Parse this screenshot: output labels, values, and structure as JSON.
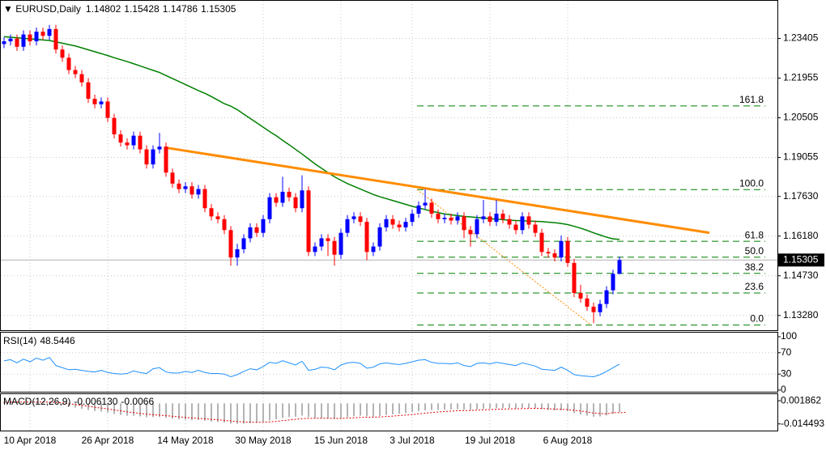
{
  "chart_data": {
    "type": "candlestick",
    "title": "EURUSD,Daily",
    "categories": [
      null,
      null,
      null,
      null,
      "10 Apr 2018",
      null,
      null,
      null,
      null,
      null,
      null,
      null,
      null,
      null,
      null,
      null,
      "26 Apr 2018",
      null,
      null,
      null,
      null,
      null,
      null,
      null,
      null,
      null,
      null,
      null,
      "14 May 2018",
      null,
      null,
      null,
      null,
      null,
      null,
      null,
      null,
      null,
      null,
      null,
      "30 May 2018",
      null,
      null,
      null,
      null,
      null,
      null,
      null,
      null,
      null,
      null,
      null,
      "15 Jun 2018",
      null,
      null,
      null,
      null,
      null,
      null,
      null,
      null,
      null,
      null,
      "3 Jul 2018",
      null,
      null,
      null,
      null,
      null,
      null,
      null,
      null,
      null,
      null,
      null,
      "19 Jul 2018",
      null,
      null,
      null,
      null,
      null,
      null,
      null,
      null,
      null,
      null,
      null,
      "6 Aug 2018",
      null,
      null,
      null,
      null,
      null,
      null,
      null,
      null
    ],
    "ylim": [
      1.1274,
      1.2481
    ],
    "yticks": [
      1.23405,
      1.21955,
      1.20505,
      1.19055,
      {
        "value": 1.1763,
        "label": "1.17630"
      },
      {
        "value": 1.1618,
        "label": "1.16180"
      },
      {
        "value": 1.1473,
        "label": "1.14730"
      },
      {
        "value": 1.1328,
        "label": "1.13280"
      }
    ],
    "grid": true,
    "up_color": "#0000ff",
    "down_color": "#ff0000",
    "candles": [
      [
        1.232,
        1.2345,
        1.2305,
        1.233
      ],
      [
        1.233,
        1.2355,
        1.2315,
        1.234
      ],
      [
        1.234,
        1.2355,
        1.2295,
        1.231
      ],
      [
        1.231,
        1.237,
        1.2295,
        1.2355
      ],
      [
        1.2355,
        1.237,
        1.2315,
        1.233
      ],
      [
        1.233,
        1.238,
        1.2315,
        1.2365
      ],
      [
        1.2365,
        1.238,
        1.2335,
        1.235
      ],
      [
        1.235,
        1.239,
        1.2335,
        1.2375
      ],
      [
        1.2375,
        1.239,
        1.2285,
        1.23
      ],
      [
        1.23,
        1.2315,
        1.2255,
        1.227
      ],
      [
        1.227,
        1.2285,
        1.221,
        1.2225
      ],
      [
        1.2225,
        1.224,
        1.2195,
        1.221
      ],
      [
        1.221,
        1.2225,
        1.2165,
        1.218
      ],
      [
        1.218,
        1.2195,
        1.2105,
        1.212
      ],
      [
        1.212,
        1.2135,
        1.2085,
        1.21
      ],
      [
        1.21,
        1.2125,
        1.2085,
        1.211
      ],
      [
        1.211,
        1.2125,
        1.2035,
        1.205
      ],
      [
        1.205,
        1.2065,
        1.1975,
        1.199
      ],
      [
        1.199,
        1.2005,
        1.1945,
        1.196
      ],
      [
        1.196,
        1.1975,
        1.1935,
        1.195
      ],
      [
        1.195,
        1.2,
        1.1935,
        1.1985
      ],
      [
        1.1985,
        1.2,
        1.192,
        1.1935
      ],
      [
        1.1935,
        1.195,
        1.1865,
        1.188
      ],
      [
        1.188,
        1.195,
        1.1865,
        1.1935
      ],
      [
        1.1935,
        1.1995,
        1.192,
        1.1945
      ],
      [
        1.1945,
        1.196,
        1.1835,
        1.185
      ],
      [
        1.185,
        1.1865,
        1.1795,
        1.181
      ],
      [
        1.181,
        1.1825,
        1.1775,
        1.179
      ],
      [
        1.179,
        1.1815,
        1.1775,
        1.18
      ],
      [
        1.18,
        1.1815,
        1.1755,
        1.177
      ],
      [
        1.177,
        1.1805,
        1.1755,
        1.179
      ],
      [
        1.179,
        1.1805,
        1.1705,
        1.172
      ],
      [
        1.172,
        1.1735,
        1.1675,
        1.169
      ],
      [
        1.169,
        1.1705,
        1.1665,
        1.168
      ],
      [
        1.168,
        1.1695,
        1.1625,
        1.164
      ],
      [
        1.164,
        1.1655,
        1.151,
        1.154
      ],
      [
        1.154,
        1.159,
        1.151,
        1.157
      ],
      [
        1.157,
        1.1625,
        1.1555,
        1.161
      ],
      [
        1.161,
        1.1665,
        1.1595,
        1.165
      ],
      [
        1.165,
        1.1665,
        1.1615,
        1.163
      ],
      [
        1.163,
        1.1695,
        1.1615,
        1.168
      ],
      [
        1.168,
        1.1775,
        1.1665,
        1.176
      ],
      [
        1.176,
        1.1775,
        1.1725,
        1.174
      ],
      [
        1.174,
        1.1835,
        1.1725,
        1.178
      ],
      [
        1.178,
        1.1795,
        1.1745,
        1.176
      ],
      [
        1.176,
        1.1775,
        1.1705,
        1.172
      ],
      [
        1.172,
        1.184,
        1.1705,
        1.1785
      ],
      [
        1.1785,
        1.18,
        1.1545,
        1.156
      ],
      [
        1.156,
        1.1595,
        1.1545,
        1.158
      ],
      [
        1.158,
        1.1625,
        1.1565,
        1.161
      ],
      [
        1.161,
        1.1625,
        1.1545,
        1.16
      ],
      [
        1.16,
        1.1615,
        1.151,
        1.155
      ],
      [
        1.155,
        1.1645,
        1.1535,
        1.163
      ],
      [
        1.163,
        1.1695,
        1.1615,
        1.168
      ],
      [
        1.168,
        1.1705,
        1.1665,
        1.169
      ],
      [
        1.169,
        1.1705,
        1.1655,
        1.167
      ],
      [
        1.167,
        1.1685,
        1.153,
        1.156
      ],
      [
        1.156,
        1.1595,
        1.1545,
        1.158
      ],
      [
        1.158,
        1.1665,
        1.1565,
        1.165
      ],
      [
        1.165,
        1.1695,
        1.1635,
        1.168
      ],
      [
        1.168,
        1.1695,
        1.1645,
        1.166
      ],
      [
        1.166,
        1.1675,
        1.1635,
        1.165
      ],
      [
        1.165,
        1.1685,
        1.1635,
        1.167
      ],
      [
        1.167,
        1.1715,
        1.1655,
        1.17
      ],
      [
        1.17,
        1.1745,
        1.1685,
        1.173
      ],
      [
        1.173,
        1.179,
        1.1715,
        1.174
      ],
      [
        1.174,
        1.1755,
        1.1685,
        1.17
      ],
      [
        1.17,
        1.1715,
        1.1665,
        1.168
      ],
      [
        1.168,
        1.17,
        1.1665,
        1.1685
      ],
      [
        1.1685,
        1.17,
        1.166,
        1.1675
      ],
      [
        1.1675,
        1.1705,
        1.166,
        1.169
      ],
      [
        1.169,
        1.1705,
        1.161,
        1.164
      ],
      [
        1.164,
        1.1655,
        1.158,
        1.1625
      ],
      [
        1.1625,
        1.1695,
        1.161,
        1.168
      ],
      [
        1.168,
        1.175,
        1.1665,
        1.169
      ],
      [
        1.169,
        1.1705,
        1.1655,
        1.167
      ],
      [
        1.167,
        1.175,
        1.1655,
        1.17
      ],
      [
        1.17,
        1.1715,
        1.1665,
        1.168
      ],
      [
        1.168,
        1.1695,
        1.1645,
        1.166
      ],
      [
        1.166,
        1.1675,
        1.1625,
        1.164
      ],
      [
        1.164,
        1.1705,
        1.1625,
        1.169
      ],
      [
        1.169,
        1.1705,
        1.1645,
        1.166
      ],
      [
        1.166,
        1.1675,
        1.1615,
        1.163
      ],
      [
        1.163,
        1.1645,
        1.1545,
        1.156
      ],
      [
        1.156,
        1.1575,
        1.154,
        1.1555
      ],
      [
        1.1555,
        1.157,
        1.1525,
        1.154
      ],
      [
        1.154,
        1.162,
        1.1525,
        1.16
      ],
      [
        1.16,
        1.1615,
        1.1505,
        1.152
      ],
      [
        1.152,
        1.1535,
        1.1395,
        1.141
      ],
      [
        1.141,
        1.144,
        1.1375,
        1.139
      ],
      [
        1.139,
        1.1405,
        1.1345,
        1.136
      ],
      [
        1.136,
        1.1375,
        1.13,
        1.134
      ],
      [
        1.134,
        1.1385,
        1.1325,
        1.137
      ],
      [
        1.137,
        1.1435,
        1.1355,
        1.142
      ],
      [
        1.142,
        1.1495,
        1.1405,
        1.148
      ],
      [
        1.14802,
        1.15428,
        1.14786,
        1.15305
      ]
    ],
    "ma": {
      "color": "#008000",
      "values": [
        1.2347,
        1.2345,
        1.2343,
        1.2341,
        1.2339,
        1.2337,
        1.2335,
        1.2333,
        1.2328,
        1.2323,
        1.2318,
        1.2313,
        1.2306,
        1.2299,
        1.2292,
        1.2285,
        1.2278,
        1.227,
        1.2263,
        1.2256,
        1.2248,
        1.224,
        1.2232,
        1.2224,
        1.2216,
        1.2205,
        1.2194,
        1.2183,
        1.2172,
        1.2161,
        1.215,
        1.214,
        1.2128,
        1.2115,
        1.2102,
        1.2093,
        1.208,
        1.2064,
        1.2048,
        1.2032,
        1.2016,
        1.2,
        1.1985,
        1.1968,
        1.1952,
        1.1935,
        1.1918,
        1.19,
        1.1882,
        1.1866,
        1.185,
        1.1835,
        1.1822,
        1.181,
        1.18,
        1.179,
        1.178,
        1.177,
        1.1762,
        1.1755,
        1.1748,
        1.1741,
        1.1734,
        1.1727,
        1.1721,
        1.1715,
        1.1709,
        1.1704,
        1.1699,
        1.1696,
        1.1693,
        1.169,
        1.1688,
        1.1686,
        1.1684,
        1.1682,
        1.168,
        1.1678,
        1.1676,
        1.1675,
        1.1674,
        1.1673,
        1.1672,
        1.1671,
        1.1669,
        1.1667,
        1.1664,
        1.166,
        1.1654,
        1.1647,
        1.1639,
        1.163,
        1.1622,
        1.1614,
        1.1608,
        1.1606
      ]
    },
    "trendline": {
      "color": "#ff8c00",
      "values": [
        1.1942,
        1.163
      ]
    },
    "fib": {
      "color": "#008000",
      "diagonal_color": "#ff8c00",
      "levels": [
        {
          "label": "161.8",
          "value": 1.2094
        },
        {
          "label": "100.0",
          "value": 1.1788
        },
        {
          "label": "61.8",
          "value": 1.1599
        },
        {
          "label": "50.0",
          "value": 1.1541
        },
        {
          "label": "38.2",
          "value": 1.1482
        },
        {
          "label": "23.6",
          "value": 1.141
        },
        {
          "label": "0.0",
          "value": 1.1293
        }
      ]
    },
    "rsi": {
      "label": "RSI(14)",
      "color": "#1e90ff",
      "ylim": [
        0,
        100
      ],
      "yticks": [
        100,
        70,
        30,
        0
      ],
      "values": [
        55,
        57,
        51,
        58,
        53,
        60,
        56,
        61,
        46,
        42,
        38,
        39,
        37,
        35,
        34,
        37,
        33,
        31,
        30,
        31,
        36,
        33,
        31,
        40,
        42,
        34,
        32,
        32,
        35,
        33,
        37,
        33,
        31,
        31,
        30,
        25,
        29,
        35,
        40,
        38,
        44,
        52,
        50,
        55,
        51,
        47,
        54,
        37,
        39,
        43,
        42,
        38,
        47,
        51,
        52,
        50,
        41,
        43,
        49,
        51,
        49,
        48,
        50,
        53,
        56,
        57,
        52,
        50,
        50,
        49,
        51,
        46,
        44,
        50,
        51,
        49,
        52,
        50,
        48,
        46,
        51,
        48,
        45,
        39,
        38,
        37,
        43,
        37,
        29,
        27,
        26,
        25,
        29,
        35,
        42,
        48.5446
      ]
    },
    "macd": {
      "label": "MACD(12,26,9)",
      "hist_color": "#b4b4b4",
      "signal_color": "#e00000",
      "ylim": [
        -0.0192,
        0.0065
      ],
      "yticks": [
        0.001862,
        -0.014493
      ],
      "values": [
        0.001,
        0.0011,
        0.0009,
        0.001,
        0.0009,
        0.001,
        0.0009,
        0.001,
        -0.0002,
        -0.0012,
        -0.0022,
        -0.003,
        -0.0038,
        -0.0047,
        -0.0054,
        -0.0058,
        -0.0066,
        -0.0075,
        -0.0082,
        -0.0087,
        -0.0088,
        -0.0092,
        -0.0098,
        -0.0097,
        -0.0096,
        -0.0102,
        -0.0108,
        -0.0113,
        -0.0115,
        -0.0119,
        -0.0118,
        -0.0123,
        -0.0128,
        -0.0131,
        -0.0135,
        -0.0143,
        -0.0145,
        -0.0144,
        -0.0139,
        -0.0136,
        -0.013,
        -0.012,
        -0.0112,
        -0.0103,
        -0.0097,
        -0.0094,
        -0.0086,
        -0.0097,
        -0.0103,
        -0.0104,
        -0.0105,
        -0.0108,
        -0.0105,
        -0.0098,
        -0.0091,
        -0.0087,
        -0.0092,
        -0.0094,
        -0.0089,
        -0.0082,
        -0.0077,
        -0.0073,
        -0.0068,
        -0.0062,
        -0.0055,
        -0.0049,
        -0.0047,
        -0.0046,
        -0.0045,
        -0.0044,
        -0.0042,
        -0.0044,
        -0.0046,
        -0.0042,
        -0.0038,
        -0.0037,
        -0.0034,
        -0.0033,
        -0.0034,
        -0.0036,
        -0.0032,
        -0.0032,
        -0.0034,
        -0.0041,
        -0.0046,
        -0.005,
        -0.0049,
        -0.0055,
        -0.0068,
        -0.0078,
        -0.0087,
        -0.0094,
        -0.0092,
        -0.0085,
        -0.0074,
        -0.00613
      ],
      "value_labels": [
        null,
        null,
        null,
        null,
        null,
        null,
        null,
        null,
        null,
        null,
        null,
        null,
        null,
        null,
        null,
        null,
        null,
        null,
        null,
        null,
        null,
        null,
        null,
        null,
        null,
        null,
        null,
        null,
        null,
        null,
        null,
        null,
        null,
        null,
        null,
        null,
        null,
        null,
        null,
        null,
        null,
        null,
        null,
        null,
        null,
        null,
        null,
        null,
        null,
        null,
        null,
        null,
        null,
        null,
        null,
        null,
        null,
        null,
        null,
        null,
        null,
        null,
        null,
        null,
        null,
        null,
        null,
        null,
        null,
        null,
        null,
        null,
        null,
        null,
        null,
        null,
        null,
        null,
        null,
        null,
        null,
        null,
        null,
        null,
        null,
        null,
        null,
        null,
        null,
        null,
        null,
        null,
        null,
        null,
        null,
        "-0.006130"
      ],
      "signal": [
        0.0008,
        0.0009,
        0.0009,
        0.0009,
        0.0009,
        0.0009,
        0.0009,
        0.0009,
        0.0007,
        0.0003,
        -0.0002,
        -0.0008,
        -0.0014,
        -0.002,
        -0.0027,
        -0.0033,
        -0.0039,
        -0.0046,
        -0.0053,
        -0.006,
        -0.0065,
        -0.0071,
        -0.0076,
        -0.008,
        -0.0083,
        -0.0087,
        -0.0091,
        -0.0095,
        -0.0099,
        -0.0103,
        -0.0106,
        -0.0109,
        -0.0113,
        -0.0116,
        -0.012,
        -0.0124,
        -0.0128,
        -0.0131,
        -0.0133,
        -0.0134,
        -0.0133,
        -0.0131,
        -0.0127,
        -0.0122,
        -0.0117,
        -0.0113,
        -0.0108,
        -0.0106,
        -0.0105,
        -0.0105,
        -0.0105,
        -0.0106,
        -0.0106,
        -0.0104,
        -0.0102,
        -0.0099,
        -0.0098,
        -0.0097,
        -0.0096,
        -0.0093,
        -0.009,
        -0.0086,
        -0.0083,
        -0.0079,
        -0.0074,
        -0.0069,
        -0.0065,
        -0.0061,
        -0.0058,
        -0.0055,
        -0.0052,
        -0.0051,
        -0.005,
        -0.0048,
        -0.0046,
        -0.0044,
        -0.0042,
        -0.004,
        -0.0039,
        -0.0038,
        -0.0037,
        -0.0036,
        -0.0035,
        -0.0036,
        -0.0038,
        -0.004,
        -0.0042,
        -0.0044,
        -0.0049,
        -0.0054,
        -0.0061,
        -0.0068,
        -0.0072,
        -0.0074,
        -0.0065,
        -0.0066,
        -0.006334
      ]
    }
  }
}
